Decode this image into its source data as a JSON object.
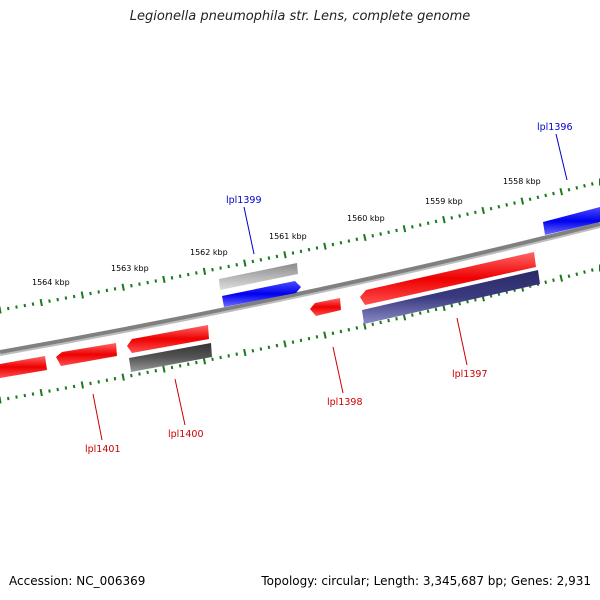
{
  "title": "Legionella pneumophila str. Lens, complete genome",
  "footer": {
    "accession": "Accession: NC_006369",
    "topology": "Topology: circular; Length: 3,345,687 bp; Genes: 2,931"
  },
  "kbp_labels": [
    "1564 kbp",
    "1563 kbp",
    "1562 kbp",
    "1561 kbp",
    "1560 kbp",
    "1559 kbp",
    "1558 kbp"
  ],
  "gene_labels": [
    {
      "name": "lpl1396",
      "color": "#0000cc"
    },
    {
      "name": "lpl1397",
      "color": "#cc0000"
    },
    {
      "name": "lpl1398",
      "color": "#cc0000"
    },
    {
      "name": "lpl1399",
      "color": "#0000cc"
    },
    {
      "name": "lpl1400",
      "color": "#cc0000"
    },
    {
      "name": "lpl1401",
      "color": "#cc0000"
    }
  ],
  "colors": {
    "forward_gene": "#ee0000",
    "reverse_gene": "#0000ee",
    "backbone": "#808080",
    "tick": "#1a7a1a",
    "gray_feature_light": "#b0b0b0",
    "gray_feature_dark": "#555555",
    "purple_feature": "#3a3a80"
  }
}
